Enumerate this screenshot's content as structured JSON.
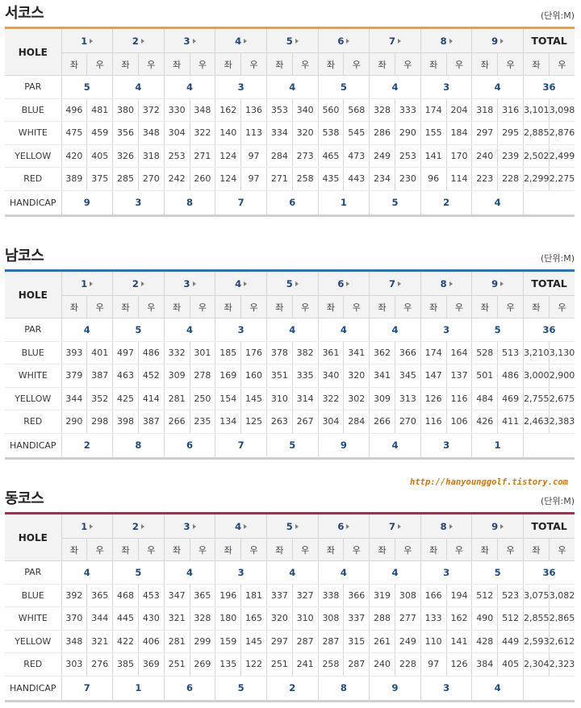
{
  "unit_label": "(단위:M)",
  "watermark": "http://hanyounggolf.tistory.com",
  "header_labels": {
    "hole": "HOLE",
    "total": "TOTAL",
    "left": "좌",
    "right": "우"
  },
  "row_labels": {
    "par": "PAR",
    "blue": "BLUE",
    "white": "WHITE",
    "yellow": "YELLOW",
    "red": "RED",
    "handicap": "HANDICAP"
  },
  "courses": [
    {
      "title": "서코스",
      "accent": "#f0a030",
      "holes": [
        "1",
        "2",
        "3",
        "4",
        "5",
        "6",
        "7",
        "8",
        "9"
      ],
      "par": [
        "5",
        "4",
        "4",
        "3",
        "4",
        "5",
        "4",
        "3",
        "4",
        "36"
      ],
      "blue": [
        "496",
        "481",
        "380",
        "372",
        "330",
        "348",
        "162",
        "136",
        "353",
        "340",
        "560",
        "568",
        "328",
        "333",
        "174",
        "204",
        "318",
        "316",
        "3,101",
        "3,098"
      ],
      "white": [
        "475",
        "459",
        "356",
        "348",
        "304",
        "322",
        "140",
        "113",
        "334",
        "320",
        "538",
        "545",
        "286",
        "290",
        "155",
        "184",
        "297",
        "295",
        "2,885",
        "2,876"
      ],
      "yellow": [
        "420",
        "405",
        "326",
        "318",
        "253",
        "271",
        "124",
        "97",
        "284",
        "273",
        "465",
        "473",
        "249",
        "253",
        "141",
        "170",
        "240",
        "239",
        "2,502",
        "2,499"
      ],
      "red": [
        "389",
        "375",
        "285",
        "270",
        "242",
        "260",
        "124",
        "97",
        "271",
        "258",
        "435",
        "443",
        "234",
        "230",
        "96",
        "114",
        "223",
        "228",
        "2,299",
        "2,275"
      ],
      "handicap": [
        "9",
        "3",
        "8",
        "7",
        "6",
        "1",
        "5",
        "2",
        "4",
        ""
      ]
    },
    {
      "title": "남코스",
      "accent": "#2a6fc0",
      "holes": [
        "1",
        "2",
        "3",
        "4",
        "5",
        "6",
        "7",
        "8",
        "9"
      ],
      "par": [
        "4",
        "5",
        "4",
        "3",
        "4",
        "4",
        "4",
        "3",
        "5",
        "36"
      ],
      "blue": [
        "393",
        "401",
        "497",
        "486",
        "332",
        "301",
        "185",
        "176",
        "378",
        "382",
        "361",
        "341",
        "362",
        "366",
        "174",
        "164",
        "528",
        "513",
        "3,210",
        "3,130"
      ],
      "white": [
        "379",
        "387",
        "463",
        "452",
        "309",
        "278",
        "169",
        "160",
        "351",
        "335",
        "340",
        "320",
        "341",
        "345",
        "147",
        "137",
        "501",
        "486",
        "3,000",
        "2,900"
      ],
      "yellow": [
        "344",
        "352",
        "425",
        "414",
        "281",
        "250",
        "154",
        "145",
        "310",
        "314",
        "322",
        "302",
        "309",
        "313",
        "126",
        "116",
        "484",
        "469",
        "2,755",
        "2,675"
      ],
      "red": [
        "290",
        "298",
        "398",
        "387",
        "266",
        "235",
        "134",
        "125",
        "263",
        "267",
        "304",
        "284",
        "266",
        "270",
        "116",
        "106",
        "426",
        "411",
        "2,463",
        "2,383"
      ],
      "handicap": [
        "2",
        "8",
        "6",
        "7",
        "5",
        "9",
        "4",
        "3",
        "1",
        ""
      ]
    },
    {
      "title": "동코스",
      "accent": "#b8254f",
      "holes": [
        "1",
        "2",
        "3",
        "4",
        "5",
        "6",
        "7",
        "8",
        "9"
      ],
      "par": [
        "4",
        "5",
        "4",
        "3",
        "4",
        "4",
        "4",
        "3",
        "5",
        "36"
      ],
      "blue": [
        "392",
        "365",
        "468",
        "453",
        "347",
        "365",
        "196",
        "181",
        "337",
        "327",
        "338",
        "366",
        "319",
        "308",
        "166",
        "194",
        "512",
        "523",
        "3,075",
        "3,082"
      ],
      "white": [
        "370",
        "344",
        "445",
        "430",
        "321",
        "328",
        "180",
        "165",
        "320",
        "310",
        "308",
        "337",
        "288",
        "277",
        "133",
        "162",
        "490",
        "512",
        "2,855",
        "2,865"
      ],
      "yellow": [
        "348",
        "321",
        "422",
        "406",
        "281",
        "299",
        "159",
        "145",
        "297",
        "287",
        "287",
        "315",
        "261",
        "249",
        "110",
        "141",
        "428",
        "449",
        "2,593",
        "2,612"
      ],
      "red": [
        "303",
        "276",
        "385",
        "369",
        "251",
        "269",
        "135",
        "122",
        "251",
        "241",
        "258",
        "287",
        "240",
        "228",
        "97",
        "126",
        "384",
        "405",
        "2,304",
        "2,323"
      ],
      "handicap": [
        "7",
        "1",
        "6",
        "5",
        "2",
        "8",
        "9",
        "3",
        "4",
        ""
      ]
    }
  ]
}
